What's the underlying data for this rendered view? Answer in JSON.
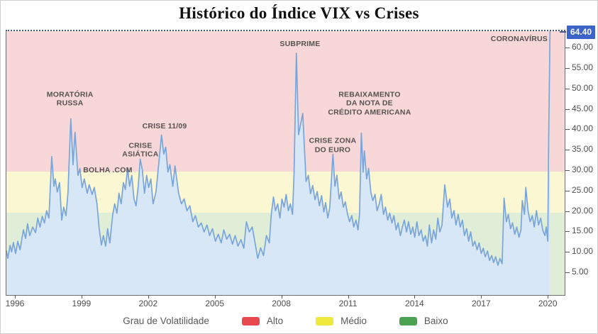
{
  "title": "Histórico do Índice VIX vs Crises",
  "legend": {
    "title": "Grau de Volatilidade",
    "items": [
      {
        "label": "Alto",
        "color": "#e7494f"
      },
      {
        "label": "Médio",
        "color": "#efe83d"
      },
      {
        "label": "Baixo",
        "color": "#4ba152"
      }
    ]
  },
  "chart_data": {
    "type": "area",
    "title": "Histórico do Índice VIX vs Crises",
    "series_name": "Índice VIX",
    "current_value": 64.4,
    "current_value_label": "64.40",
    "ylim": [
      -0.4,
      64.4
    ],
    "xlim": [
      1995.55,
      2020.75
    ],
    "line_color": "#79a5da",
    "fill_color": "#d8e7f5",
    "dotted_line_color": "#46598e",
    "badge_color": "#3c63c8",
    "x_ticks": [
      {
        "year": 1996,
        "label": "1996"
      },
      {
        "year": 1999,
        "label": "1999"
      },
      {
        "year": 2002,
        "label": "2002"
      },
      {
        "year": 2005,
        "label": "2005"
      },
      {
        "year": 2008,
        "label": "2008"
      },
      {
        "year": 2011,
        "label": "2011"
      },
      {
        "year": 2014,
        "label": "2014"
      },
      {
        "year": 2017,
        "label": "2017"
      },
      {
        "year": 2020,
        "label": "2020"
      }
    ],
    "y_ticks": [
      {
        "value": 60,
        "label": "60.00"
      },
      {
        "value": 55,
        "label": "55.00"
      },
      {
        "value": 50,
        "label": "50.00"
      },
      {
        "value": 45,
        "label": "45.00"
      },
      {
        "value": 40,
        "label": "40.00"
      },
      {
        "value": 35,
        "label": "35.00"
      },
      {
        "value": 30,
        "label": "30.00"
      },
      {
        "value": 25,
        "label": "25.00"
      },
      {
        "value": 20,
        "label": "20.00"
      },
      {
        "value": 15,
        "label": "15.00"
      },
      {
        "value": 10,
        "label": "10.00"
      },
      {
        "value": 5,
        "label": "5.00"
      }
    ],
    "zones": [
      {
        "name": "Alto",
        "from": 30,
        "to": 64.4,
        "color": "#f8d7d9"
      },
      {
        "name": "Médio",
        "from": 20,
        "to": 30,
        "color": "#fbf7d3"
      },
      {
        "name": "Baixo",
        "from": -0.4,
        "to": 20,
        "color": "#e1eed7"
      }
    ],
    "annotations": [
      {
        "label": "MORATÓRIA\nRUSSA",
        "year": 1998.45,
        "value": 47.8
      },
      {
        "label": "BOLHA .COM",
        "year": 2000.15,
        "value": 30.3
      },
      {
        "label": "CRISE\nASIÁTICA",
        "year": 2001.62,
        "value": 35.3
      },
      {
        "label": "CRISE 11/09",
        "year": 2002.71,
        "value": 41.2
      },
      {
        "label": "SUBPRIME",
        "year": 2008.81,
        "value": 61.3
      },
      {
        "label": "CRISE ZONA\nDO EURO",
        "year": 2010.28,
        "value": 36.4
      },
      {
        "label": "REBAIXAMENTO\nDA NOTA DE\nCRÉDITO AMERICANA",
        "year": 2011.94,
        "value": 46.7
      },
      {
        "label": "CORONAVÍRUS",
        "year": 2018.68,
        "value": 62.5
      }
    ],
    "points": [
      [
        1995.58,
        10.5
      ],
      [
        1995.65,
        8.6
      ],
      [
        1995.75,
        11.8
      ],
      [
        1995.82,
        10.2
      ],
      [
        1995.9,
        12.5
      ],
      [
        1996.0,
        9.8
      ],
      [
        1996.1,
        12.8
      ],
      [
        1996.2,
        10.7
      ],
      [
        1996.35,
        15.6
      ],
      [
        1996.45,
        13.5
      ],
      [
        1996.54,
        17.1
      ],
      [
        1996.64,
        14.2
      ],
      [
        1996.77,
        16.3
      ],
      [
        1996.9,
        14.9
      ],
      [
        1997.0,
        18.5
      ],
      [
        1997.1,
        16.3
      ],
      [
        1997.2,
        18.9
      ],
      [
        1997.3,
        17.3
      ],
      [
        1997.4,
        20.3
      ],
      [
        1997.5,
        18.5
      ],
      [
        1997.63,
        33.6
      ],
      [
        1997.73,
        26.3
      ],
      [
        1997.79,
        28.1
      ],
      [
        1997.88,
        24.9
      ],
      [
        1997.98,
        27.2
      ],
      [
        1998.08,
        18.0
      ],
      [
        1998.17,
        21.2
      ],
      [
        1998.27,
        19.1
      ],
      [
        1998.36,
        24.6
      ],
      [
        1998.49,
        42.9
      ],
      [
        1998.59,
        31.6
      ],
      [
        1998.68,
        39.6
      ],
      [
        1998.81,
        29.0
      ],
      [
        1998.9,
        30.7
      ],
      [
        1999.0,
        26.0
      ],
      [
        1999.1,
        28.1
      ],
      [
        1999.23,
        24.6
      ],
      [
        1999.32,
        26.7
      ],
      [
        1999.45,
        24.3
      ],
      [
        1999.55,
        26.0
      ],
      [
        1999.67,
        22.0
      ],
      [
        1999.77,
        15.9
      ],
      [
        1999.87,
        11.9
      ],
      [
        1999.96,
        14.2
      ],
      [
        2000.06,
        11.6
      ],
      [
        2000.15,
        15.9
      ],
      [
        2000.25,
        12.4
      ],
      [
        2000.38,
        19.4
      ],
      [
        2000.47,
        22.0
      ],
      [
        2000.57,
        19.7
      ],
      [
        2000.66,
        24.6
      ],
      [
        2000.76,
        22.0
      ],
      [
        2000.86,
        27.2
      ],
      [
        2000.95,
        25.5
      ],
      [
        2001.05,
        30.7
      ],
      [
        2001.14,
        26.3
      ],
      [
        2001.24,
        29.0
      ],
      [
        2001.34,
        23.2
      ],
      [
        2001.43,
        21.5
      ],
      [
        2001.53,
        26.3
      ],
      [
        2001.62,
        33.0
      ],
      [
        2001.72,
        30.2
      ],
      [
        2001.81,
        24.6
      ],
      [
        2001.91,
        29.0
      ],
      [
        2002.0,
        26.0
      ],
      [
        2002.1,
        28.1
      ],
      [
        2002.2,
        22.0
      ],
      [
        2002.33,
        24.9
      ],
      [
        2002.42,
        29.8
      ],
      [
        2002.58,
        38.9
      ],
      [
        2002.68,
        34.2
      ],
      [
        2002.77,
        35.9
      ],
      [
        2002.87,
        29.8
      ],
      [
        2002.96,
        31.6
      ],
      [
        2003.09,
        26.3
      ],
      [
        2003.19,
        31.3
      ],
      [
        2003.35,
        24.6
      ],
      [
        2003.48,
        22.0
      ],
      [
        2003.6,
        23.2
      ],
      [
        2003.73,
        20.3
      ],
      [
        2003.86,
        21.5
      ],
      [
        2003.99,
        17.6
      ],
      [
        2004.11,
        19.1
      ],
      [
        2004.24,
        16.3
      ],
      [
        2004.37,
        17.3
      ],
      [
        2004.5,
        15.1
      ],
      [
        2004.63,
        16.8
      ],
      [
        2004.75,
        14.2
      ],
      [
        2004.88,
        15.9
      ],
      [
        2005.01,
        12.8
      ],
      [
        2005.14,
        14.5
      ],
      [
        2005.27,
        12.4
      ],
      [
        2005.39,
        15.6
      ],
      [
        2005.52,
        13.3
      ],
      [
        2005.65,
        14.5
      ],
      [
        2005.78,
        12.1
      ],
      [
        2005.9,
        14.2
      ],
      [
        2006.03,
        11.6
      ],
      [
        2006.16,
        13.2
      ],
      [
        2006.29,
        11.1
      ],
      [
        2006.41,
        17.6
      ],
      [
        2006.54,
        15.1
      ],
      [
        2006.67,
        16.3
      ],
      [
        2006.8,
        12.4
      ],
      [
        2006.92,
        8.6
      ],
      [
        2007.05,
        11.2
      ],
      [
        2007.18,
        9.3
      ],
      [
        2007.31,
        14.2
      ],
      [
        2007.44,
        12.4
      ],
      [
        2007.53,
        19.4
      ],
      [
        2007.63,
        23.7
      ],
      [
        2007.72,
        20.3
      ],
      [
        2007.82,
        22.0
      ],
      [
        2007.92,
        18.5
      ],
      [
        2008.01,
        23.2
      ],
      [
        2008.11,
        21.2
      ],
      [
        2008.2,
        24.3
      ],
      [
        2008.3,
        20.3
      ],
      [
        2008.39,
        22.0
      ],
      [
        2008.49,
        19.4
      ],
      [
        2008.56,
        29.8
      ],
      [
        2008.66,
        59.0
      ],
      [
        2008.76,
        39.0
      ],
      [
        2008.95,
        44.2
      ],
      [
        2009.1,
        27.5
      ],
      [
        2009.2,
        29.0
      ],
      [
        2009.3,
        24.5
      ],
      [
        2009.4,
        26.5
      ],
      [
        2009.5,
        23.0
      ],
      [
        2009.6,
        25.0
      ],
      [
        2009.7,
        21.5
      ],
      [
        2009.8,
        24.0
      ],
      [
        2009.9,
        20.0
      ],
      [
        2009.98,
        22.3
      ],
      [
        2010.08,
        18.5
      ],
      [
        2010.17,
        21.2
      ],
      [
        2010.31,
        34.2
      ],
      [
        2010.4,
        26.3
      ],
      [
        2010.49,
        29.0
      ],
      [
        2010.59,
        23.2
      ],
      [
        2010.68,
        24.9
      ],
      [
        2010.78,
        21.2
      ],
      [
        2010.87,
        22.5
      ],
      [
        2010.97,
        19.4
      ],
      [
        2011.06,
        17.6
      ],
      [
        2011.16,
        19.1
      ],
      [
        2011.25,
        16.3
      ],
      [
        2011.35,
        18.0
      ],
      [
        2011.44,
        15.6
      ],
      [
        2011.51,
        19.4
      ],
      [
        2011.59,
        39.4
      ],
      [
        2011.67,
        29.8
      ],
      [
        2011.73,
        35.0
      ],
      [
        2011.83,
        28.1
      ],
      [
        2011.92,
        30.7
      ],
      [
        2012.02,
        24.9
      ],
      [
        2012.11,
        22.8
      ],
      [
        2012.21,
        24.3
      ],
      [
        2012.3,
        20.3
      ],
      [
        2012.4,
        22.0
      ],
      [
        2012.49,
        24.3
      ],
      [
        2012.59,
        19.4
      ],
      [
        2012.68,
        21.2
      ],
      [
        2012.78,
        18.0
      ],
      [
        2012.87,
        19.7
      ],
      [
        2012.97,
        17.3
      ],
      [
        2013.06,
        19.1
      ],
      [
        2013.16,
        15.6
      ],
      [
        2013.25,
        17.3
      ],
      [
        2013.35,
        14.2
      ],
      [
        2013.44,
        16.3
      ],
      [
        2013.53,
        18.0
      ],
      [
        2013.63,
        15.1
      ],
      [
        2013.72,
        17.6
      ],
      [
        2013.82,
        14.5
      ],
      [
        2013.91,
        16.3
      ],
      [
        2014.0,
        13.8
      ],
      [
        2014.1,
        17.6
      ],
      [
        2014.19,
        14.2
      ],
      [
        2014.29,
        15.6
      ],
      [
        2014.38,
        12.8
      ],
      [
        2014.48,
        14.2
      ],
      [
        2014.57,
        11.6
      ],
      [
        2014.66,
        16.8
      ],
      [
        2014.76,
        12.4
      ],
      [
        2014.85,
        15.6
      ],
      [
        2014.95,
        13.3
      ],
      [
        2015.04,
        18.5
      ],
      [
        2015.13,
        15.1
      ],
      [
        2015.23,
        16.8
      ],
      [
        2015.35,
        26.7
      ],
      [
        2015.48,
        21.2
      ],
      [
        2015.58,
        23.2
      ],
      [
        2015.67,
        18.5
      ],
      [
        2015.77,
        20.3
      ],
      [
        2015.86,
        16.8
      ],
      [
        2015.96,
        19.4
      ],
      [
        2016.05,
        16.3
      ],
      [
        2016.15,
        18.0
      ],
      [
        2016.24,
        14.2
      ],
      [
        2016.34,
        15.9
      ],
      [
        2016.43,
        12.8
      ],
      [
        2016.52,
        15.1
      ],
      [
        2016.62,
        11.6
      ],
      [
        2016.71,
        12.8
      ],
      [
        2016.81,
        10.7
      ],
      [
        2016.9,
        12.4
      ],
      [
        2017.0,
        9.8
      ],
      [
        2017.09,
        11.1
      ],
      [
        2017.18,
        9.0
      ],
      [
        2017.28,
        10.4
      ],
      [
        2017.37,
        8.1
      ],
      [
        2017.47,
        9.3
      ],
      [
        2017.56,
        7.6
      ],
      [
        2017.65,
        9.0
      ],
      [
        2017.75,
        6.9
      ],
      [
        2017.84,
        8.6
      ],
      [
        2017.94,
        7.3
      ],
      [
        2018.03,
        23.4
      ],
      [
        2018.13,
        17.6
      ],
      [
        2018.22,
        19.4
      ],
      [
        2018.32,
        15.9
      ],
      [
        2018.41,
        17.3
      ],
      [
        2018.51,
        14.5
      ],
      [
        2018.6,
        16.3
      ],
      [
        2018.7,
        13.8
      ],
      [
        2018.79,
        15.6
      ],
      [
        2018.85,
        22.8
      ],
      [
        2018.95,
        19.4
      ],
      [
        2019.01,
        26.0
      ],
      [
        2019.11,
        20.3
      ],
      [
        2019.2,
        17.6
      ],
      [
        2019.3,
        19.1
      ],
      [
        2019.39,
        16.3
      ],
      [
        2019.49,
        20.3
      ],
      [
        2019.58,
        16.8
      ],
      [
        2019.68,
        18.5
      ],
      [
        2019.77,
        15.6
      ],
      [
        2019.87,
        14.2
      ],
      [
        2019.93,
        16.3
      ],
      [
        2020.0,
        12.8
      ],
      [
        2020.04,
        38.5
      ],
      [
        2020.1,
        64.4
      ]
    ]
  }
}
